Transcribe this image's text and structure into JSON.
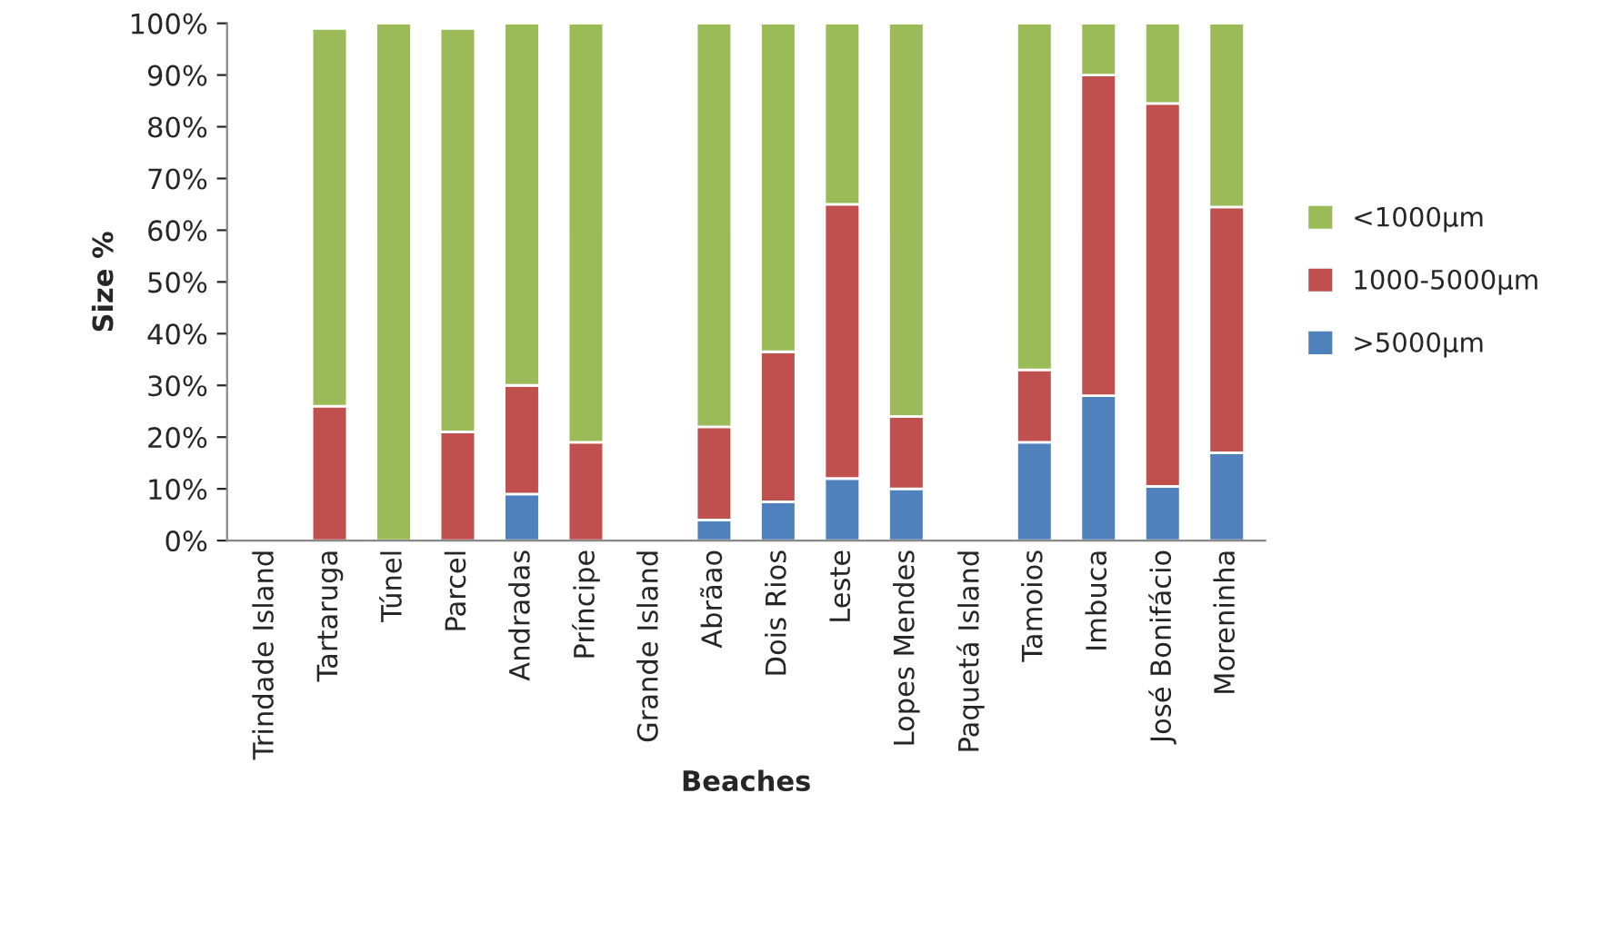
{
  "chart_data": {
    "type": "bar",
    "stacked": true,
    "xlabel": "Beaches",
    "ylabel": "Size %",
    "categories": [
      "Trindade Island",
      "Tartaruga",
      "Túnel",
      "Parcel",
      "Andradas",
      "Príncipe",
      "Grande Island",
      "Abrãao",
      "Dois Rios",
      "Leste",
      "Lopes Mendes",
      "Paquetá Island",
      "Tamoios",
      "Imbuca",
      "José Bonifácio",
      "Moreninha"
    ],
    "series": [
      {
        "name": ">5000µm",
        "color": "#4f81bd",
        "values": [
          null,
          0,
          0,
          0,
          9,
          0,
          null,
          4,
          7.5,
          12,
          10,
          null,
          19,
          28,
          10.5,
          17
        ]
      },
      {
        "name": "1000-5000µm",
        "color": "#c0504d",
        "values": [
          null,
          26,
          0,
          21,
          21,
          19,
          null,
          18,
          29,
          53,
          14,
          null,
          14,
          62,
          74,
          47.5
        ]
      },
      {
        "name": "<1000µm",
        "color": "#9bbb59",
        "values": [
          null,
          73,
          100,
          78,
          70,
          81,
          null,
          78,
          63.5,
          35,
          76,
          null,
          67,
          10,
          15.5,
          35.5
        ]
      }
    ],
    "ylim": [
      0,
      100
    ],
    "yticks": [
      {
        "value": 0,
        "label": "0%"
      },
      {
        "value": 10,
        "label": "10%"
      },
      {
        "value": 20,
        "label": "20%"
      },
      {
        "value": 30,
        "label": "30%"
      },
      {
        "value": 40,
        "label": "40%"
      },
      {
        "value": 50,
        "label": "50%"
      },
      {
        "value": 60,
        "label": "60%"
      },
      {
        "value": 70,
        "label": "70%"
      },
      {
        "value": 80,
        "label": "80%"
      },
      {
        "value": 90,
        "label": "90%"
      },
      {
        "value": 100,
        "label": "100%"
      }
    ],
    "grid": false,
    "legend": "right"
  }
}
